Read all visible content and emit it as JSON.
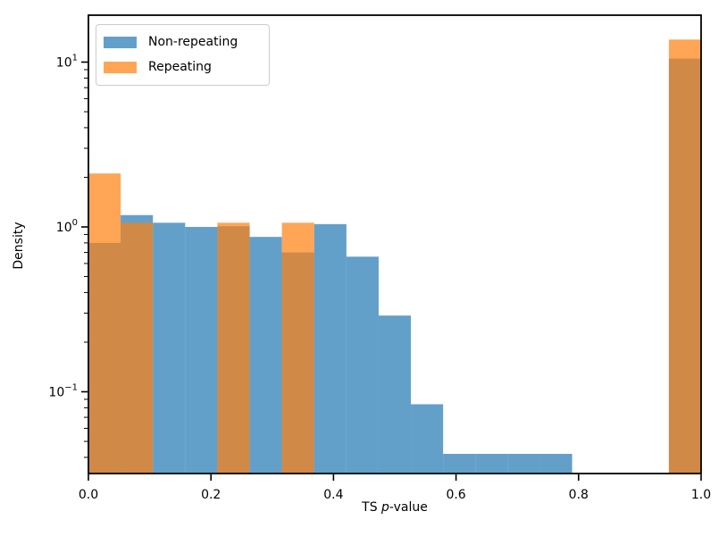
{
  "chart_data": {
    "type": "bar",
    "subtype": "histogram-overlaid",
    "title": "",
    "xlabel_parts": {
      "prefix": "TS ",
      "italic": "p",
      "suffix": "-value"
    },
    "xlabel_plain": "TS p-value",
    "ylabel": "Density",
    "x_scale": "linear",
    "y_scale": "log",
    "xlim": [
      0.0,
      1.0
    ],
    "ylim": [
      0.032,
      19.3
    ],
    "grid": false,
    "x_ticks": [
      {
        "value": 0.0,
        "label": "0.0"
      },
      {
        "value": 0.2,
        "label": "0.2"
      },
      {
        "value": 0.4,
        "label": "0.4"
      },
      {
        "value": 0.6,
        "label": "0.6"
      },
      {
        "value": 0.8,
        "label": "0.8"
      },
      {
        "value": 1.0,
        "label": "1.0"
      }
    ],
    "y_ticks": [
      {
        "value": 10,
        "base": "10",
        "exp": "1"
      },
      {
        "value": 1,
        "base": "10",
        "exp": "0"
      },
      {
        "value": 0.1,
        "base": "10",
        "exp": "−1"
      }
    ],
    "y_minor_ticks": [
      0.04,
      0.05,
      0.06,
      0.07,
      0.08,
      0.09,
      0.2,
      0.3,
      0.4,
      0.5,
      0.6,
      0.7,
      0.8,
      0.9,
      2,
      3,
      4,
      5,
      6,
      7,
      8,
      9
    ],
    "bin_edges": [
      0.0,
      0.0526,
      0.1053,
      0.1579,
      0.2105,
      0.2632,
      0.3158,
      0.3684,
      0.4211,
      0.4737,
      0.5263,
      0.5789,
      0.6316,
      0.6842,
      0.7368,
      0.7895,
      0.8421,
      0.8947,
      0.9474,
      1.0
    ],
    "series": [
      {
        "name": "Non-repeating",
        "color": "#1f77b4",
        "alpha": 0.7,
        "densities": [
          0.8,
          1.18,
          1.06,
          1.0,
          1.01,
          0.87,
          0.7,
          1.04,
          0.66,
          0.29,
          0.084,
          0.042,
          0.042,
          0.042,
          0.042,
          0,
          0,
          0,
          10.5
        ]
      },
      {
        "name": "Repeating",
        "color": "#ff7f0e",
        "alpha": 0.7,
        "densities": [
          2.11,
          1.06,
          0,
          0,
          1.06,
          0,
          1.06,
          0,
          0,
          0,
          0,
          0,
          0,
          0,
          0,
          0,
          0,
          0,
          13.7
        ]
      }
    ],
    "legend": {
      "position": "upper left",
      "entries": [
        "Non-repeating",
        "Repeating"
      ]
    }
  }
}
